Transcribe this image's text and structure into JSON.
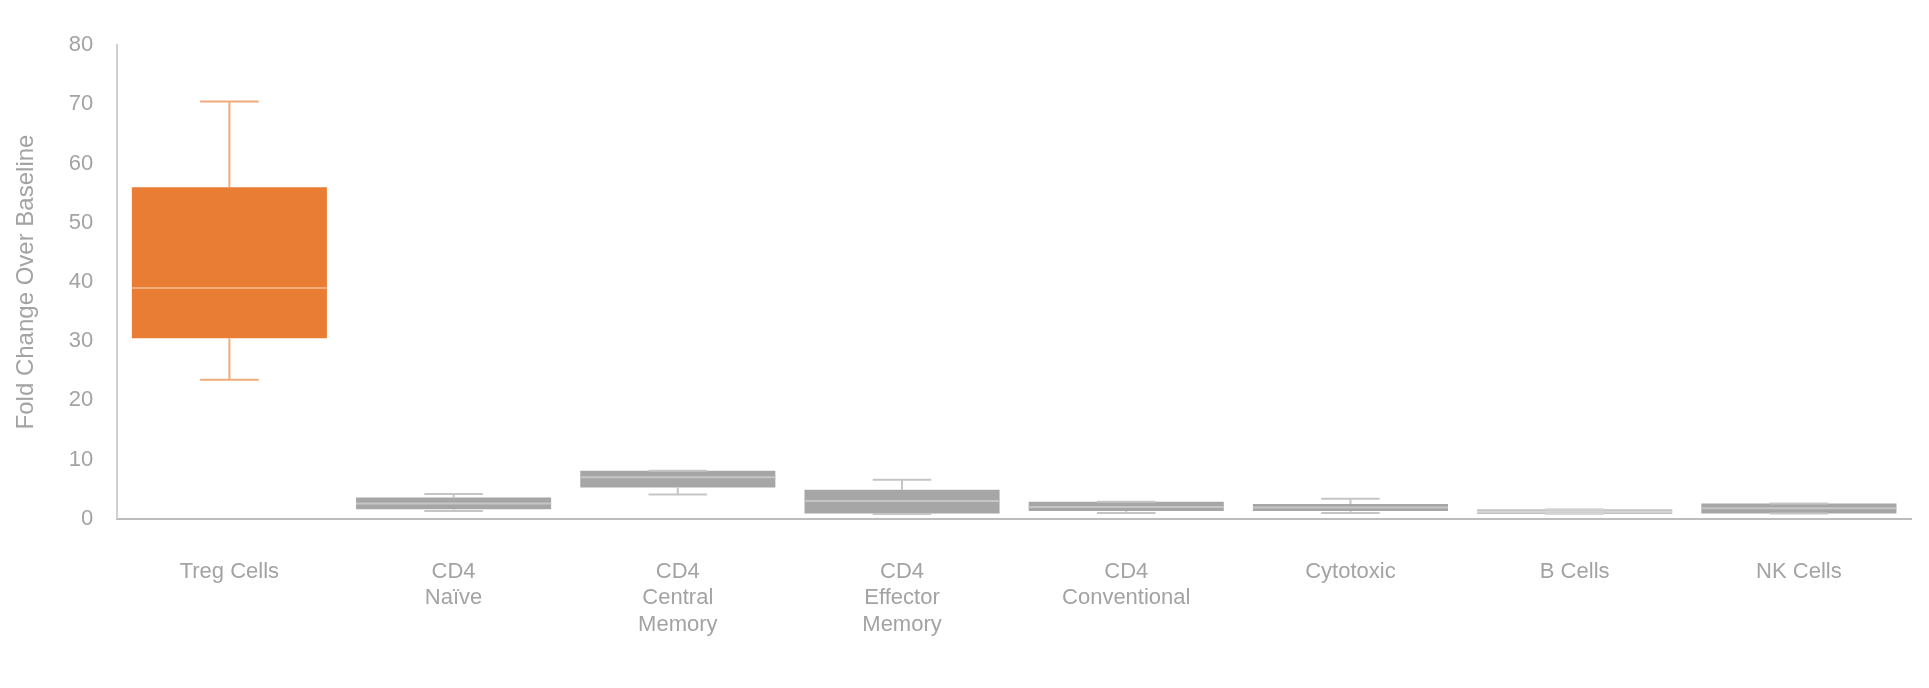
{
  "chart_data": {
    "type": "box",
    "ylabel": "Fold Change Over Baseline",
    "categories": [
      "Treg Cells",
      "CD4\nNaïve",
      "CD4\nCentral\nMemory",
      "CD4\nEffector\nMemory",
      "CD4\nConventional",
      "Cytotoxic",
      "B Cells",
      "NK Cells"
    ],
    "boxes": [
      {
        "low": 23.5,
        "q1": 30.5,
        "median": 39,
        "q3": 56,
        "high": 70.5
      },
      {
        "low": 1.3,
        "q1": 1.6,
        "median": 2.6,
        "q3": 3.6,
        "high": 4.2
      },
      {
        "low": 4.1,
        "q1": 5.3,
        "median": 7,
        "q3": 8.1,
        "high": 8.1
      },
      {
        "low": 0.8,
        "q1": 0.9,
        "median": 3,
        "q3": 4.9,
        "high": 6.6
      },
      {
        "low": 1.0,
        "q1": 1.3,
        "median": 2,
        "q3": 2.9,
        "high": 2.9
      },
      {
        "low": 1.0,
        "q1": 1.3,
        "median": 1.9,
        "q3": 2.5,
        "high": 3.4
      },
      {
        "low": 0.8,
        "q1": 0.8,
        "median": 1.2,
        "q3": 1.6,
        "high": 1.6
      },
      {
        "low": 0.9,
        "q1": 0.9,
        "median": 1.8,
        "q3": 2.6,
        "high": 2.6
      }
    ],
    "colors": [
      "#e87d33",
      "#a6a6a6",
      "#a6a6a6",
      "#a6a6a6",
      "#a6a6a6",
      "#a6a6a6",
      "#c0c0c0",
      "#a6a6a6"
    ],
    "ylim": [
      0,
      80
    ],
    "yticks": [
      0,
      10,
      20,
      30,
      40,
      50,
      60,
      70,
      80
    ],
    "grid": false,
    "legend": false
  }
}
